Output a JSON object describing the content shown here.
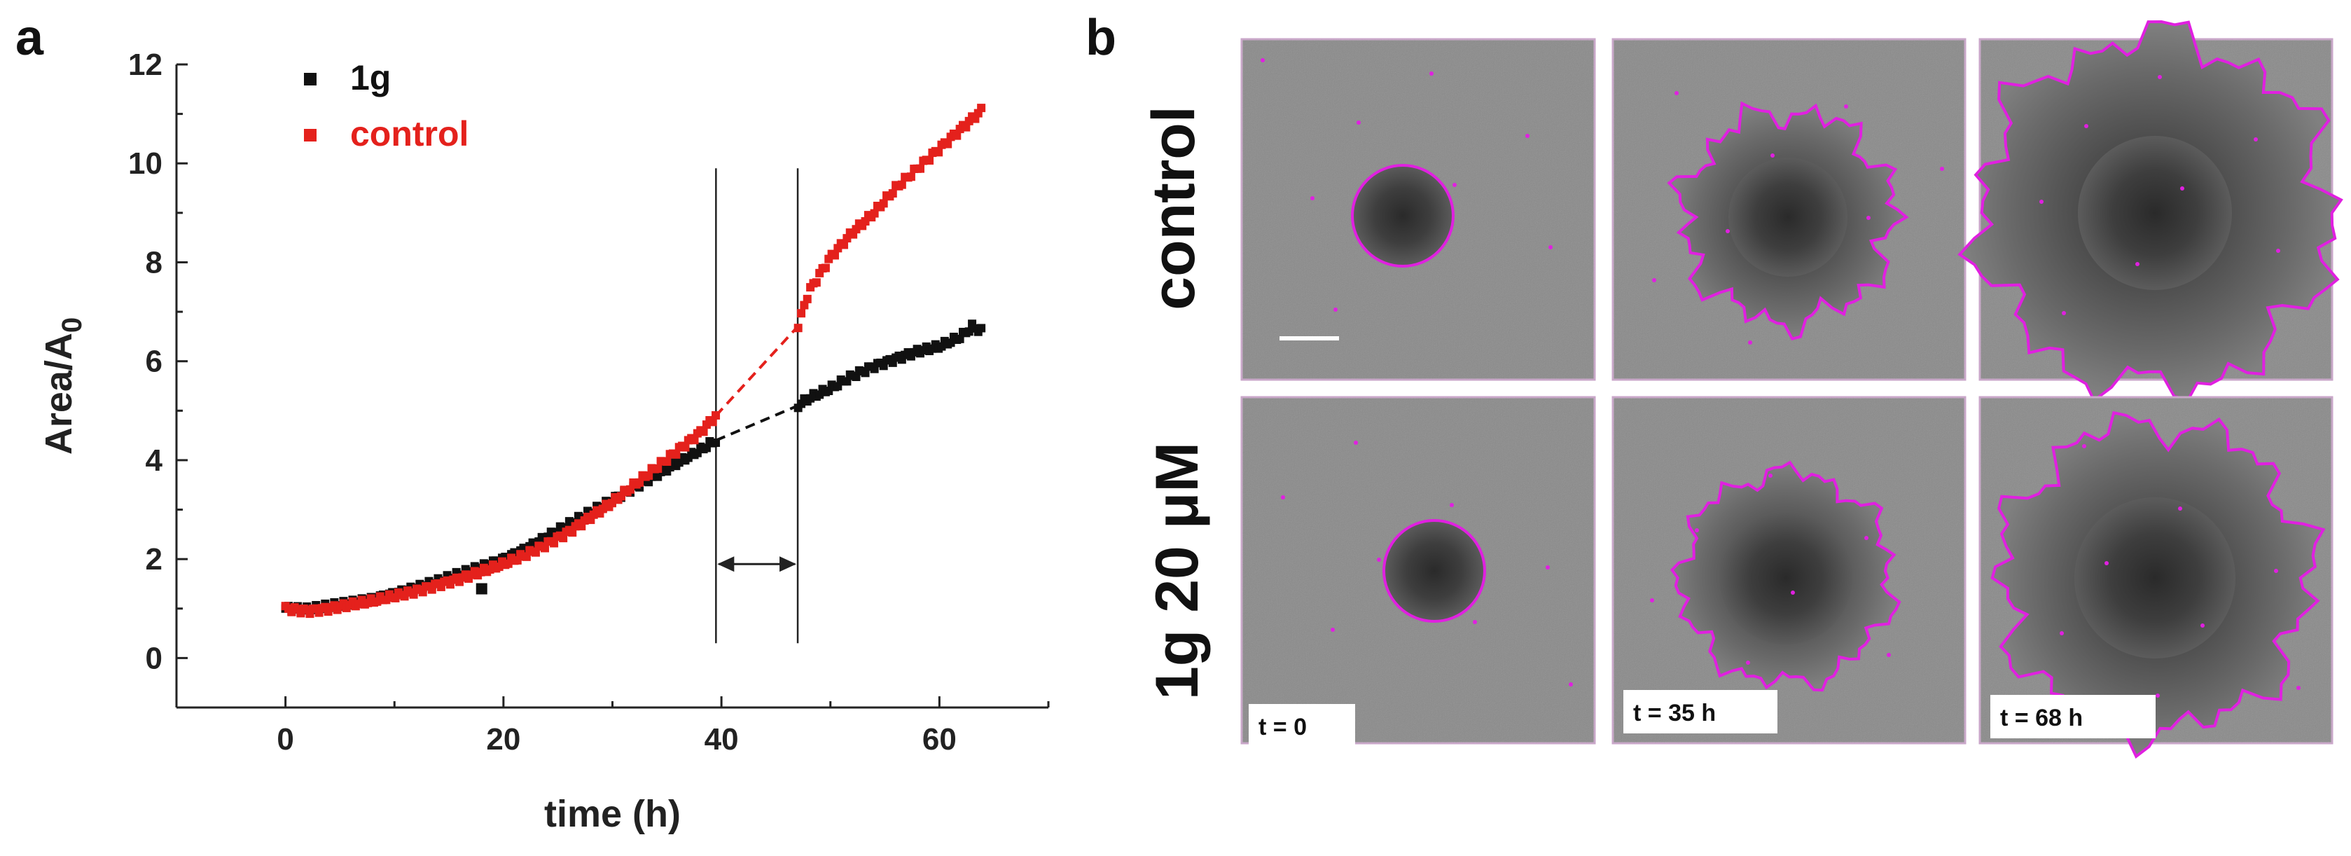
{
  "panel_a": {
    "letter": "a",
    "chart_data": {
      "type": "scatter",
      "xlabel": "time (h)",
      "ylabel_main": "Area/A",
      "ylabel_sub": "0",
      "xlim": [
        -10,
        70
      ],
      "ylim": [
        -1,
        12
      ],
      "x_ticks": [
        0,
        20,
        40,
        60
      ],
      "y_ticks": [
        0,
        2,
        4,
        6,
        8,
        10,
        12
      ],
      "legend_position": "top-left",
      "series": [
        {
          "name": "1g",
          "color": "#111111",
          "points": [
            [
              0,
              1.0
            ],
            [
              2,
              0.98
            ],
            [
              4,
              1.05
            ],
            [
              6,
              1.12
            ],
            [
              8,
              1.2
            ],
            [
              10,
              1.3
            ],
            [
              12,
              1.42
            ],
            [
              14,
              1.55
            ],
            [
              16,
              1.7
            ],
            [
              18,
              1.85
            ],
            [
              20,
              2.0
            ],
            [
              22,
              2.2
            ],
            [
              24,
              2.45
            ],
            [
              26,
              2.7
            ],
            [
              28,
              2.95
            ],
            [
              30,
              3.2
            ],
            [
              32,
              3.45
            ],
            [
              34,
              3.7
            ],
            [
              36,
              3.95
            ],
            [
              38,
              4.2
            ],
            [
              39.5,
              4.4
            ],
            [
              47,
              5.1
            ],
            [
              48,
              5.25
            ],
            [
              50,
              5.45
            ],
            [
              52,
              5.7
            ],
            [
              54,
              5.9
            ],
            [
              56,
              6.05
            ],
            [
              58,
              6.2
            ],
            [
              60,
              6.3
            ],
            [
              62,
              6.5
            ],
            [
              63,
              6.7
            ],
            [
              64,
              6.6
            ]
          ],
          "outliers": [
            [
              18,
              1.4
            ]
          ]
        },
        {
          "name": "control",
          "color": "#e4211c",
          "points": [
            [
              0,
              1.0
            ],
            [
              2,
              0.95
            ],
            [
              4,
              1.0
            ],
            [
              6,
              1.08
            ],
            [
              8,
              1.15
            ],
            [
              10,
              1.25
            ],
            [
              12,
              1.35
            ],
            [
              14,
              1.48
            ],
            [
              16,
              1.6
            ],
            [
              18,
              1.75
            ],
            [
              20,
              1.9
            ],
            [
              22,
              2.08
            ],
            [
              24,
              2.3
            ],
            [
              26,
              2.55
            ],
            [
              28,
              2.85
            ],
            [
              30,
              3.15
            ],
            [
              32,
              3.5
            ],
            [
              34,
              3.85
            ],
            [
              36,
              4.2
            ],
            [
              38,
              4.55
            ],
            [
              39.5,
              4.9
            ],
            [
              47,
              6.7
            ],
            [
              48,
              7.4
            ],
            [
              50,
              8.1
            ],
            [
              52,
              8.6
            ],
            [
              54,
              9.0
            ],
            [
              56,
              9.5
            ],
            [
              58,
              9.9
            ],
            [
              60,
              10.3
            ],
            [
              62,
              10.7
            ],
            [
              64,
              11.1
            ]
          ]
        }
      ],
      "gap_interval": [
        39.5,
        47
      ]
    }
  },
  "panel_b": {
    "letter": "b",
    "row_labels": [
      "control",
      "1g 20 μM"
    ],
    "time_labels": [
      "t = 0",
      "t = 35 h",
      "t = 68 h"
    ],
    "outline_color": "#e020e0"
  }
}
